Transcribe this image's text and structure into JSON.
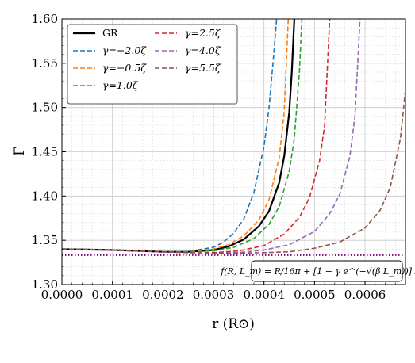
{
  "chart_data": {
    "type": "line",
    "xlabel": "r (R⊙)",
    "ylabel": "Γ",
    "xlim": [
      0,
      0.00068
    ],
    "ylim": [
      1.3,
      1.6
    ],
    "x_ticks": [
      0,
      0.0001,
      0.0002,
      0.0003,
      0.0004,
      0.0005,
      0.0006
    ],
    "x_tick_labels": [
      "0.0000",
      "0.0001",
      "0.0002",
      "0.0003",
      "0.0004",
      "0.0005",
      "0.0006"
    ],
    "y_ticks": [
      1.3,
      1.35,
      1.4,
      1.45,
      1.5,
      1.55,
      1.6
    ],
    "y_tick_labels": [
      "1.30",
      "1.35",
      "1.40",
      "1.45",
      "1.50",
      "1.55",
      "1.60"
    ],
    "grid": true,
    "minor_grid": true,
    "legend_position": "top-left",
    "legend_columns": 2,
    "annotation": "f(R, L_m) = R/16π + [1 − γ e^(−√(β L_m))] L_m",
    "reference_line": {
      "y": 1.3333,
      "color": "#800080",
      "style": "dotted"
    },
    "series": [
      {
        "name": "GR",
        "color": "#000000",
        "style": "solid",
        "x": [
          0,
          5e-05,
          0.0001,
          0.00015,
          0.0002,
          0.00025,
          0.0003,
          0.00033,
          0.00036,
          0.00039,
          0.00041,
          0.00043,
          0.00044,
          0.00045,
          0.000455,
          0.00046
        ],
        "y": [
          1.34,
          1.3395,
          1.339,
          1.338,
          1.337,
          1.337,
          1.339,
          1.343,
          1.351,
          1.366,
          1.383,
          1.415,
          1.445,
          1.495,
          1.54,
          1.6
        ]
      },
      {
        "name": "γ=−2.0ζ",
        "color": "#1f77b4",
        "style": "dashed",
        "x": [
          0,
          5e-05,
          0.0001,
          0.00015,
          0.0002,
          0.00025,
          0.0003,
          0.00032,
          0.00034,
          0.00036,
          0.00038,
          0.0004,
          0.00041,
          0.00042,
          0.000425
        ],
        "y": [
          1.34,
          1.3395,
          1.339,
          1.338,
          1.337,
          1.3375,
          1.342,
          1.348,
          1.358,
          1.374,
          1.404,
          1.456,
          1.5,
          1.565,
          1.6
        ]
      },
      {
        "name": "γ=−0.5ζ",
        "color": "#ff7f0e",
        "style": "dashed",
        "x": [
          0,
          5e-05,
          0.0001,
          0.00015,
          0.0002,
          0.00025,
          0.0003,
          0.00033,
          0.00036,
          0.00039,
          0.00041,
          0.00043,
          0.00044,
          0.000448
        ],
        "y": [
          1.34,
          1.3395,
          1.339,
          1.338,
          1.337,
          1.337,
          1.34,
          1.345,
          1.355,
          1.373,
          1.396,
          1.443,
          1.495,
          1.6
        ]
      },
      {
        "name": "γ=1.0ζ",
        "color": "#2ca02c",
        "style": "dashed",
        "x": [
          0,
          5e-05,
          0.0001,
          0.00015,
          0.0002,
          0.00025,
          0.0003,
          0.00034,
          0.00038,
          0.00041,
          0.00043,
          0.00045,
          0.00046,
          0.00047,
          0.000475
        ],
        "y": [
          1.34,
          1.3395,
          1.339,
          1.338,
          1.337,
          1.337,
          1.338,
          1.342,
          1.352,
          1.368,
          1.388,
          1.428,
          1.465,
          1.54,
          1.6
        ]
      },
      {
        "name": "γ=2.5ζ",
        "color": "#d62728",
        "style": "dashed",
        "x": [
          0,
          5e-05,
          0.0001,
          0.00015,
          0.0002,
          0.00025,
          0.0003,
          0.00035,
          0.0004,
          0.00044,
          0.00047,
          0.00049,
          0.00051,
          0.00052,
          0.00053
        ],
        "y": [
          1.34,
          1.3395,
          1.339,
          1.338,
          1.337,
          1.336,
          1.336,
          1.338,
          1.344,
          1.357,
          1.376,
          1.398,
          1.44,
          1.48,
          1.6
        ]
      },
      {
        "name": "γ=4.0ζ",
        "color": "#9467bd",
        "style": "dashed",
        "x": [
          0,
          5e-05,
          0.0001,
          0.00015,
          0.0002,
          0.00025,
          0.0003,
          0.00035,
          0.0004,
          0.00045,
          0.0005,
          0.00053,
          0.00055,
          0.00057,
          0.00058,
          0.00059
        ],
        "y": [
          1.34,
          1.3395,
          1.339,
          1.338,
          1.337,
          1.336,
          1.3355,
          1.336,
          1.339,
          1.345,
          1.36,
          1.38,
          1.402,
          1.445,
          1.49,
          1.6
        ]
      },
      {
        "name": "γ=5.5ζ",
        "color": "#8c564b",
        "style": "dashed",
        "x": [
          0,
          5e-05,
          0.0001,
          0.00015,
          0.0002,
          0.00025,
          0.0003,
          0.00035,
          0.0004,
          0.00045,
          0.0005,
          0.00055,
          0.0006,
          0.00063,
          0.00065,
          0.00067,
          0.00068
        ],
        "y": [
          1.34,
          1.3395,
          1.339,
          1.338,
          1.337,
          1.336,
          1.3355,
          1.3355,
          1.336,
          1.337,
          1.341,
          1.348,
          1.364,
          1.384,
          1.41,
          1.465,
          1.52
        ]
      }
    ]
  }
}
